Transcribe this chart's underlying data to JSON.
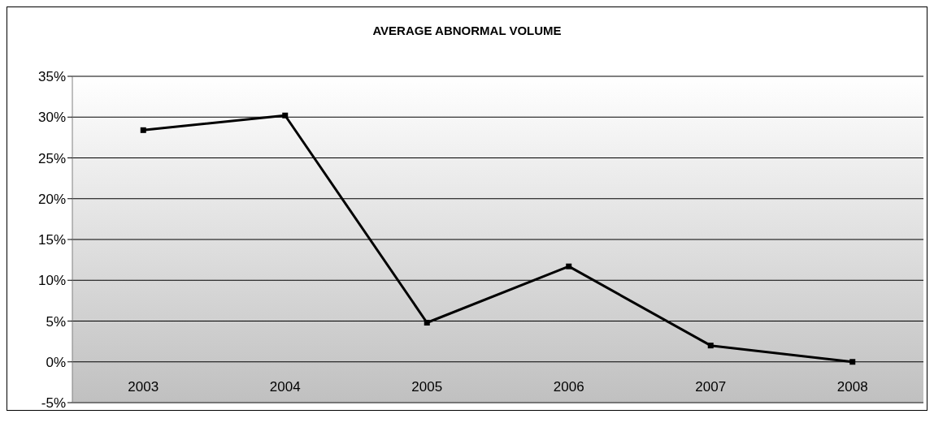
{
  "chart_data": {
    "type": "line",
    "title": "AVERAGE ABNORMAL VOLUME",
    "categories": [
      "2003",
      "2004",
      "2005",
      "2006",
      "2007",
      "2008"
    ],
    "series": [
      {
        "color": "#000000",
        "values": [
          28.4,
          30.2,
          4.8,
          11.7,
          2.0,
          0.0
        ]
      }
    ],
    "ylim": [
      -5,
      35
    ],
    "yticks": [
      {
        "value": -5,
        "label": "-5%"
      },
      {
        "value": 0,
        "label": "0%"
      },
      {
        "value": 5,
        "label": "5%"
      },
      {
        "value": 10,
        "label": "10%"
      },
      {
        "value": 15,
        "label": "15%"
      },
      {
        "value": 20,
        "label": "20%"
      },
      {
        "value": 25,
        "label": "25%"
      },
      {
        "value": 30,
        "label": "30%"
      },
      {
        "value": 35,
        "label": "35%"
      }
    ],
    "grid": "y",
    "marker": "square",
    "line_style": "solid"
  }
}
